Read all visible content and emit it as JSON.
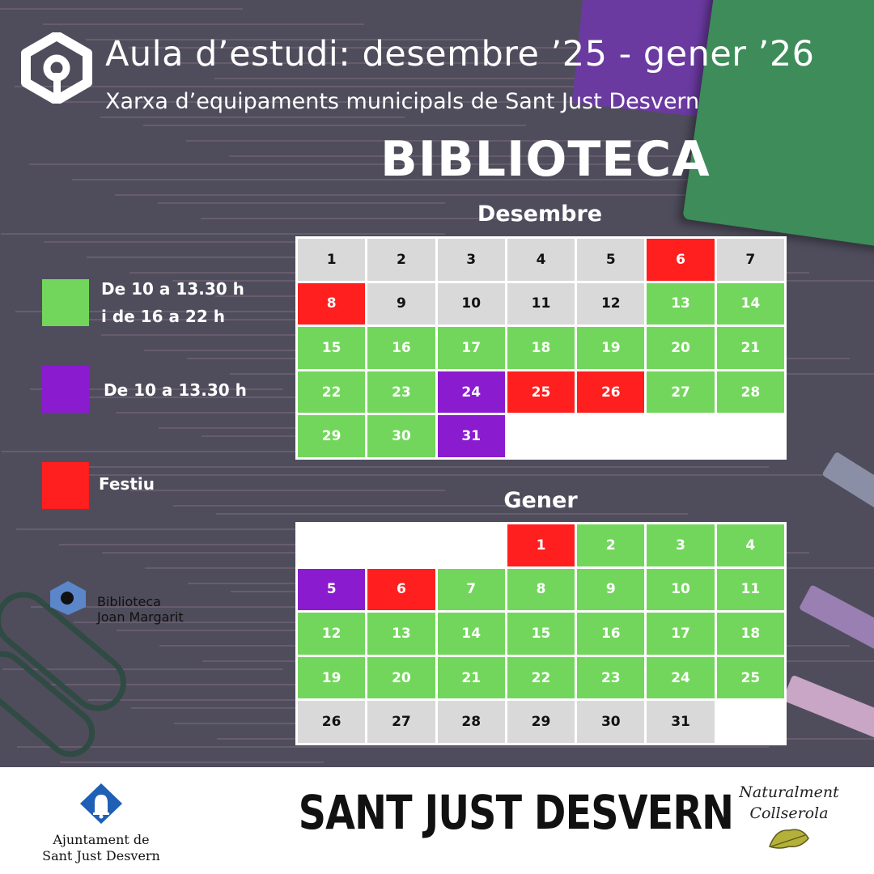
{
  "header": {
    "title": "Aula d’estudi: desembre ’25 - gener ’26",
    "subtitle": "Xarxa d’equipaments municipals de Sant Just Desvern",
    "heading": "BIBLIOTECA",
    "logo_icon": "network-logo-icon"
  },
  "legend": [
    {
      "label_line1": "De 10 a 13.30 h",
      "label_line2": "i de 16 a 22 h",
      "color": "#73d65c"
    },
    {
      "label_line1": "De 10 a 13.30 h",
      "label_line2": "",
      "color": "#8a1bcf"
    },
    {
      "label_line1": "Festiu",
      "label_line2": "",
      "color": "#ff1f1f"
    }
  ],
  "calendars": {
    "december": {
      "title": "Desembre",
      "cells": [
        {
          "day": "1",
          "status": "grey"
        },
        {
          "day": "2",
          "status": "grey"
        },
        {
          "day": "3",
          "status": "grey"
        },
        {
          "day": "4",
          "status": "grey"
        },
        {
          "day": "5",
          "status": "grey"
        },
        {
          "day": "6",
          "status": "red"
        },
        {
          "day": "7",
          "status": "grey"
        },
        {
          "day": "8",
          "status": "red"
        },
        {
          "day": "9",
          "status": "grey"
        },
        {
          "day": "10",
          "status": "grey"
        },
        {
          "day": "11",
          "status": "grey"
        },
        {
          "day": "12",
          "status": "grey"
        },
        {
          "day": "13",
          "status": "green"
        },
        {
          "day": "14",
          "status": "green"
        },
        {
          "day": "15",
          "status": "green"
        },
        {
          "day": "16",
          "status": "green"
        },
        {
          "day": "17",
          "status": "green"
        },
        {
          "day": "18",
          "status": "green"
        },
        {
          "day": "19",
          "status": "green"
        },
        {
          "day": "20",
          "status": "green"
        },
        {
          "day": "21",
          "status": "green"
        },
        {
          "day": "22",
          "status": "green"
        },
        {
          "day": "23",
          "status": "green"
        },
        {
          "day": "24",
          "status": "purple"
        },
        {
          "day": "25",
          "status": "red"
        },
        {
          "day": "26",
          "status": "red"
        },
        {
          "day": "27",
          "status": "green"
        },
        {
          "day": "28",
          "status": "green"
        },
        {
          "day": "29",
          "status": "green"
        },
        {
          "day": "30",
          "status": "green"
        },
        {
          "day": "31",
          "status": "purple"
        },
        {
          "day": "",
          "status": "empty"
        },
        {
          "day": "",
          "status": "empty"
        },
        {
          "day": "",
          "status": "empty"
        },
        {
          "day": "",
          "status": "empty"
        }
      ]
    },
    "january": {
      "title": "Gener",
      "cells": [
        {
          "day": "",
          "status": "empty"
        },
        {
          "day": "",
          "status": "empty"
        },
        {
          "day": "",
          "status": "empty"
        },
        {
          "day": "1",
          "status": "red"
        },
        {
          "day": "2",
          "status": "green"
        },
        {
          "day": "3",
          "status": "green"
        },
        {
          "day": "4",
          "status": "green"
        },
        {
          "day": "5",
          "status": "purple"
        },
        {
          "day": "6",
          "status": "red"
        },
        {
          "day": "7",
          "status": "green"
        },
        {
          "day": "8",
          "status": "green"
        },
        {
          "day": "9",
          "status": "green"
        },
        {
          "day": "10",
          "status": "green"
        },
        {
          "day": "11",
          "status": "green"
        },
        {
          "day": "12",
          "status": "green"
        },
        {
          "day": "13",
          "status": "green"
        },
        {
          "day": "14",
          "status": "green"
        },
        {
          "day": "15",
          "status": "green"
        },
        {
          "day": "16",
          "status": "green"
        },
        {
          "day": "17",
          "status": "green"
        },
        {
          "day": "18",
          "status": "green"
        },
        {
          "day": "19",
          "status": "green"
        },
        {
          "day": "20",
          "status": "green"
        },
        {
          "day": "21",
          "status": "green"
        },
        {
          "day": "22",
          "status": "green"
        },
        {
          "day": "23",
          "status": "green"
        },
        {
          "day": "24",
          "status": "green"
        },
        {
          "day": "25",
          "status": "green"
        },
        {
          "day": "26",
          "status": "grey"
        },
        {
          "day": "27",
          "status": "grey"
        },
        {
          "day": "28",
          "status": "grey"
        },
        {
          "day": "29",
          "status": "grey"
        },
        {
          "day": "30",
          "status": "grey"
        },
        {
          "day": "31",
          "status": "grey"
        },
        {
          "day": "",
          "status": "empty"
        }
      ]
    }
  },
  "library_logo": {
    "line1": "Biblioteca",
    "line2": "Joan Margarit",
    "icon": "library-logo-icon"
  },
  "footer": {
    "ajuntament_line1": "Ajuntament de",
    "ajuntament_line2": "Sant Just Desvern",
    "ajuntament_icon": "bell-shield-icon",
    "city_name": "SANT JUST DESVERN",
    "natural_line1": "Naturalment",
    "natural_line2": "Collserola",
    "natural_icon": "oak-leaf-icon"
  },
  "colors": {
    "green": "#73d65c",
    "purple": "#8a1bcf",
    "red": "#ff1f1f",
    "grey": "#d9d9d9",
    "background": "#4f4d5c"
  }
}
